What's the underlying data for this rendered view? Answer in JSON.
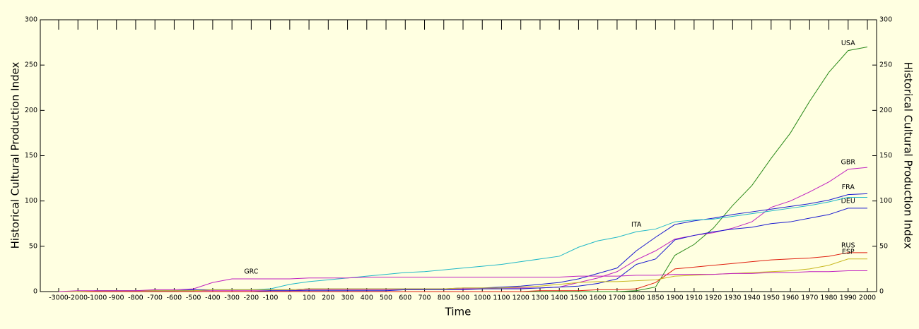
{
  "chart_data": {
    "type": "line",
    "xlabel": "Time",
    "ylabel": "Historical Cultural Production Index",
    "y2label": "Historical Cultural Production Index",
    "categories": [
      "-3000",
      "-2000",
      "-1000",
      "-900",
      "-800",
      "-700",
      "-600",
      "-500",
      "-400",
      "-300",
      "-200",
      "-100",
      "0",
      "100",
      "200",
      "300",
      "400",
      "500",
      "600",
      "700",
      "800",
      "900",
      "1000",
      "1100",
      "1200",
      "1300",
      "1400",
      "1500",
      "1600",
      "1700",
      "1800",
      "1850",
      "1900",
      "1910",
      "1920",
      "1930",
      "1940",
      "1950",
      "1960",
      "1970",
      "1980",
      "1990",
      "2000"
    ],
    "ylim": [
      0,
      300
    ],
    "yticks": [
      0,
      50,
      100,
      150,
      200,
      250,
      300
    ],
    "y2lim": [
      0,
      300
    ],
    "y2ticks": [
      0,
      50,
      100,
      150,
      200,
      250,
      300
    ],
    "series": [
      {
        "name": "USA",
        "color": "#2a8a1a",
        "values": [
          0,
          0,
          0,
          0,
          0,
          0,
          0,
          0,
          0,
          0,
          0,
          0,
          0,
          0,
          0,
          0,
          0,
          0,
          0,
          0,
          0,
          0,
          0,
          0,
          0,
          0,
          0,
          0,
          0,
          0,
          1,
          5,
          40,
          52,
          70,
          95,
          117,
          147,
          175,
          210,
          242,
          266,
          270
        ]
      },
      {
        "name": "GBR",
        "color": "#c020c0",
        "values": [
          0,
          0,
          1,
          1,
          1,
          1,
          1,
          1,
          1,
          1,
          1,
          1,
          1,
          2,
          2,
          2,
          2,
          2,
          2,
          3,
          3,
          3,
          3,
          4,
          4,
          4,
          5,
          10,
          15,
          22,
          35,
          45,
          58,
          62,
          65,
          70,
          77,
          93,
          100,
          110,
          121,
          135,
          137
        ]
      },
      {
        "name": "FRA",
        "color": "#1a1ad0",
        "values": [
          0,
          0,
          1,
          1,
          1,
          1,
          1,
          2,
          2,
          2,
          2,
          2,
          2,
          3,
          3,
          3,
          3,
          3,
          3,
          3,
          3,
          4,
          4,
          5,
          6,
          8,
          10,
          14,
          20,
          26,
          45,
          60,
          74,
          78,
          81,
          85,
          88,
          91,
          94,
          97,
          101,
          107,
          108
        ]
      },
      {
        "name": "DEU",
        "color": "#1a1ad0",
        "values": [
          0,
          0,
          0,
          0,
          0,
          0,
          0,
          0,
          0,
          0,
          0,
          1,
          1,
          1,
          1,
          1,
          1,
          1,
          2,
          2,
          2,
          2,
          3,
          3,
          3,
          4,
          5,
          6,
          9,
          14,
          30,
          36,
          57,
          62,
          66,
          69,
          71,
          75,
          77,
          81,
          85,
          92,
          92
        ]
      },
      {
        "name": "ITA",
        "color": "#20b8c8",
        "values": [
          0,
          0,
          1,
          1,
          1,
          1,
          1,
          1,
          2,
          2,
          2,
          3,
          8,
          11,
          13,
          15,
          17,
          19,
          21,
          22,
          24,
          26,
          28,
          30,
          33,
          36,
          39,
          49,
          56,
          60,
          66,
          69,
          77,
          79,
          80,
          83,
          86,
          89,
          92,
          95,
          99,
          104,
          104
        ]
      },
      {
        "name": "RUS",
        "color": "#e02010",
        "values": [
          0,
          0,
          0,
          0,
          0,
          0,
          0,
          0,
          0,
          0,
          0,
          0,
          0,
          0,
          0,
          0,
          0,
          0,
          0,
          0,
          0,
          0,
          0,
          0,
          0,
          1,
          1,
          1,
          2,
          2,
          3,
          10,
          25,
          27,
          29,
          31,
          33,
          35,
          36,
          37,
          39,
          43,
          43
        ]
      },
      {
        "name": "ESP",
        "color": "#c8b820",
        "values": [
          0,
          0,
          1,
          1,
          1,
          1,
          1,
          1,
          2,
          2,
          2,
          2,
          2,
          3,
          3,
          3,
          3,
          3,
          3,
          3,
          3,
          4,
          4,
          4,
          5,
          6,
          8,
          10,
          11,
          11,
          12,
          13,
          17,
          18,
          19,
          20,
          21,
          22,
          23,
          25,
          29,
          36,
          36
        ]
      },
      {
        "name": "GRC",
        "color": "#c020c0",
        "values": [
          0,
          1,
          1,
          1,
          1,
          2,
          2,
          3,
          10,
          14,
          14,
          14,
          14,
          15,
          15,
          15,
          16,
          16,
          16,
          16,
          16,
          16,
          16,
          16,
          16,
          16,
          16,
          17,
          17,
          17,
          18,
          18,
          19,
          19,
          19,
          20,
          20,
          21,
          21,
          22,
          22,
          23,
          23
        ]
      }
    ]
  }
}
